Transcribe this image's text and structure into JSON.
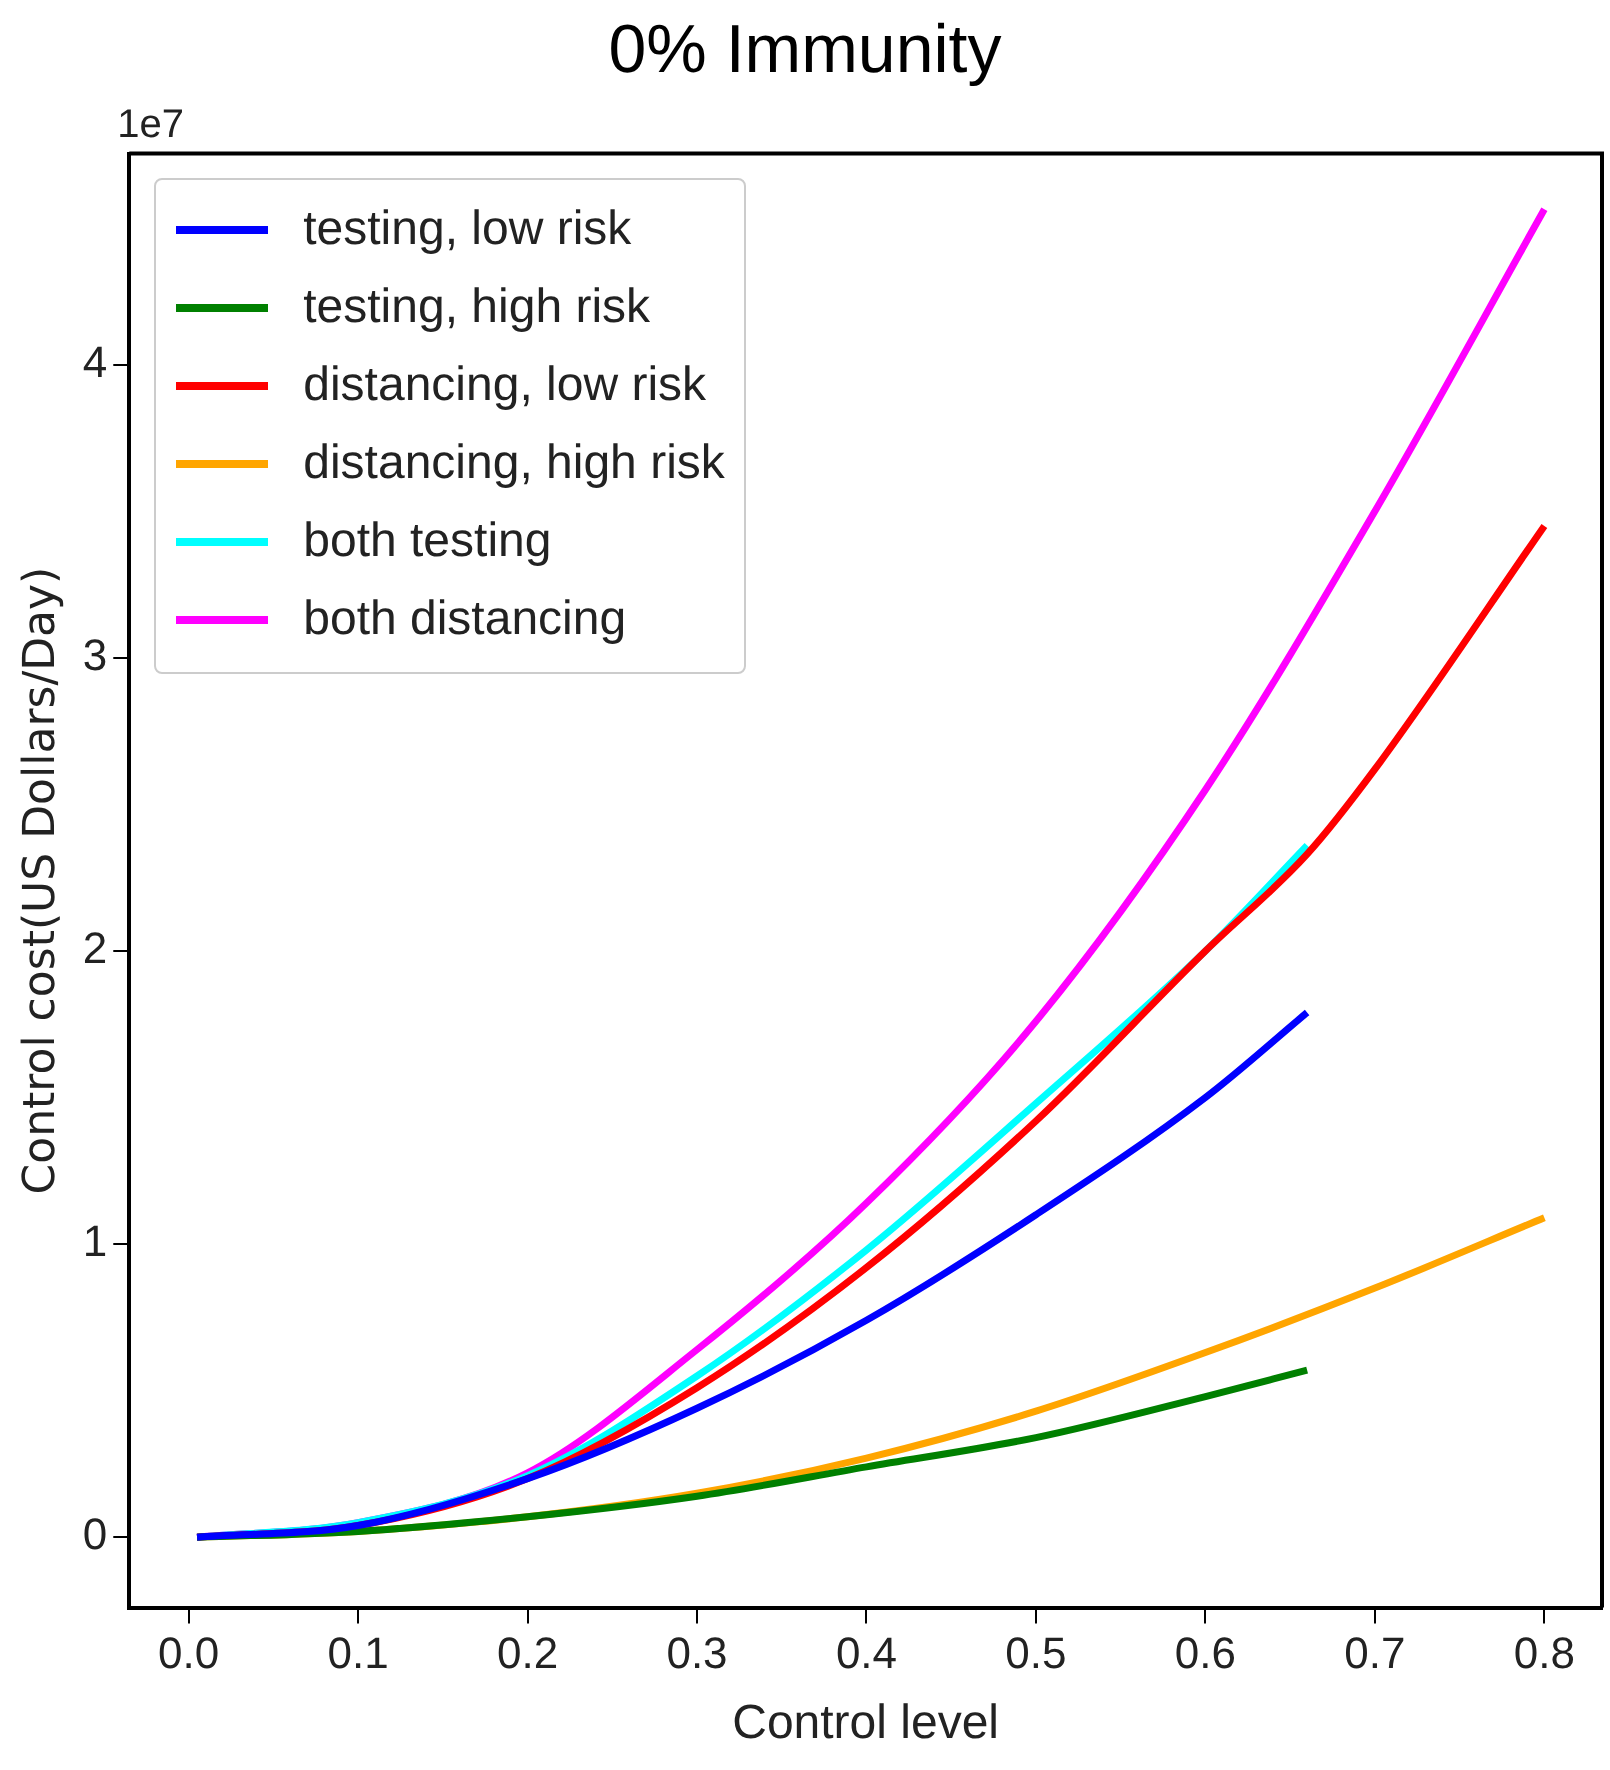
{
  "chart_data": {
    "type": "line",
    "title": "0% Immunity",
    "xlabel": "Control level",
    "ylabel": "Control cost(US Dollars/Day)",
    "annotations": [
      "1e7"
    ],
    "xlim": [
      -0.035,
      0.834
    ],
    "xticks": [
      {
        "value": 0,
        "label": "0.0"
      },
      0.1,
      0.2,
      0.3,
      0.4,
      0.5,
      0.6,
      0.7,
      0.8
    ],
    "ylim": [
      -0.24,
      4.72
    ],
    "yticks": [
      0,
      1,
      2,
      3,
      4
    ],
    "grid": false,
    "legend": "top left",
    "marker": "none",
    "line_style": "solid",
    "series": [
      {
        "name": "testing, low risk",
        "color": "#0000ff",
        "x": [
          0.005,
          0.1,
          0.2,
          0.3,
          0.4,
          0.5,
          0.6,
          0.66
        ],
        "values": [
          0,
          0.04,
          0.2,
          0.44,
          0.74,
          1.1,
          1.5,
          1.79
        ]
      },
      {
        "name": "testing, high risk",
        "color": "#008000",
        "x": [
          0.005,
          0.1,
          0.2,
          0.3,
          0.4,
          0.5,
          0.6,
          0.66
        ],
        "values": [
          0,
          0.02,
          0.07,
          0.14,
          0.24,
          0.34,
          0.48,
          0.57
        ]
      },
      {
        "name": "distancing, low risk",
        "color": "#ff0000",
        "x": [
          0.005,
          0.1,
          0.2,
          0.3,
          0.4,
          0.5,
          0.6,
          0.66,
          0.7,
          0.8
        ],
        "values": [
          0,
          0.04,
          0.2,
          0.51,
          0.92,
          1.42,
          2.0,
          2.33,
          2.62,
          3.45
        ]
      },
      {
        "name": "distancing, high risk",
        "color": "#ffa500",
        "x": [
          0.005,
          0.1,
          0.2,
          0.3,
          0.4,
          0.5,
          0.6,
          0.7,
          0.8
        ],
        "values": [
          0,
          0.02,
          0.07,
          0.15,
          0.27,
          0.43,
          0.63,
          0.85,
          1.09
        ]
      },
      {
        "name": "both testing",
        "color": "#00ffff",
        "x": [
          0.005,
          0.1,
          0.2,
          0.3,
          0.4,
          0.5,
          0.6,
          0.66
        ],
        "values": [
          0,
          0.05,
          0.21,
          0.55,
          0.98,
          1.48,
          2.0,
          2.36
        ]
      },
      {
        "name": "both distancing",
        "color": "#ff00ff",
        "x": [
          0.005,
          0.1,
          0.2,
          0.3,
          0.4,
          0.5,
          0.6,
          0.7,
          0.8
        ],
        "values": [
          0,
          0.05,
          0.22,
          0.64,
          1.14,
          1.76,
          2.55,
          3.5,
          4.53
        ]
      }
    ]
  }
}
